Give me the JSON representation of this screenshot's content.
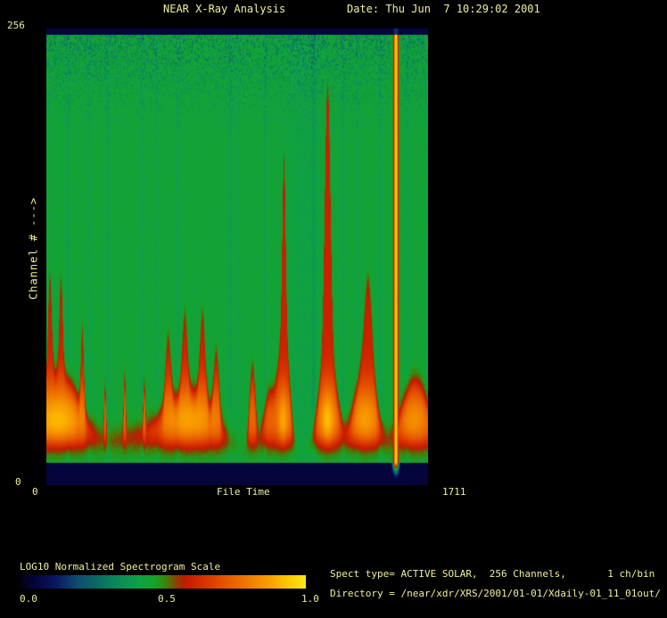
{
  "header": {
    "title": "NEAR X-Ray Analysis",
    "date": "Date: Thu Jun  7 10:29:02 2001"
  },
  "axes": {
    "y_max_label": "256",
    "y_min_label": "0",
    "y_title": "Channel # --->",
    "x_min_label": "0",
    "x_title": "File Time",
    "x_max_label": "1711"
  },
  "colorbar": {
    "label": "LOG10 Normalized Spectrogram Scale",
    "ticks": [
      "0.0",
      "0.5",
      "1.0"
    ]
  },
  "info": {
    "spect_line": "Spect type= ACTIVE SOLAR,  256 Channels,       1 ch/bin",
    "directory_line": "Directory = /near/xdr/XRS/2001/01-01/Xdaily-01_11_01out/"
  },
  "colors": {
    "background": "#000000",
    "text": "#efef9e",
    "navy_band": "#0b0b52",
    "plot_green": "#10a242",
    "flare_red": "#d02200",
    "flare_orange": "#ee7700",
    "saturation_yellow": "#ffe818"
  },
  "chart_data": {
    "type": "heatmap",
    "title": "NEAR X-Ray Analysis",
    "subtitle": "Date: Thu Jun  7 10:29:02 2001",
    "xlabel": "File Time",
    "ylabel": "Channel # --->",
    "x_range": [
      0,
      1711
    ],
    "y_range": [
      0,
      256
    ],
    "scale_label": "LOG10 Normalized Spectrogram Scale",
    "scale_ticks": [
      0.0,
      0.5,
      1.0
    ],
    "spect_type": "ACTIVE SOLAR",
    "channels": 256,
    "channels_per_bin": 1,
    "legend_position": "bottom-left colorbar",
    "grid": false,
    "colormap_stops": [
      [
        0.0,
        "#020212"
      ],
      [
        0.06,
        "#050540"
      ],
      [
        0.13,
        "#0a1a62"
      ],
      [
        0.2,
        "#0e4d71"
      ],
      [
        0.27,
        "#0c6a62"
      ],
      [
        0.34,
        "#0c8a5a"
      ],
      [
        0.42,
        "#10a244"
      ],
      [
        0.47,
        "#16a32a"
      ],
      [
        0.51,
        "#3f830a"
      ],
      [
        0.55,
        "#8f3d02"
      ],
      [
        0.58,
        "#c41a00"
      ],
      [
        0.65,
        "#d93500"
      ],
      [
        0.72,
        "#e55700"
      ],
      [
        0.8,
        "#f07c00"
      ],
      [
        0.88,
        "#faa300"
      ],
      [
        0.94,
        "#ffc900"
      ],
      [
        1.0,
        "#ffe818"
      ]
    ],
    "model": {
      "comment": "procedural decomposition of the spectrogram: normalized LOG10 intensity v(t=file-time 0..1711, c=channel 0..256); flare events as gaussian bumps on the low-channel envelope",
      "base_envelope": 14,
      "bg_value": 0.445,
      "band_value": 0.6,
      "band_floor": 22,
      "core_center": 34,
      "core_sigma": 16,
      "core_base": 0.16,
      "envelope_events": [
        {
          "t": 55,
          "s": 90,
          "a": 50
        },
        {
          "t": 14,
          "s": 8,
          "a": 58
        },
        {
          "t": 64,
          "s": 7,
          "a": 52
        },
        {
          "t": 160,
          "s": 6,
          "a": 46
        },
        {
          "t": 262,
          "s": 4,
          "a": 28
        },
        {
          "t": 350,
          "s": 4,
          "a": 34
        },
        {
          "t": 438,
          "s": 4,
          "a": 26
        },
        {
          "t": 370,
          "s": 130,
          "a": 13
        },
        {
          "t": 650,
          "s": 115,
          "a": 38
        },
        {
          "t": 545,
          "s": 11,
          "a": 40
        },
        {
          "t": 620,
          "s": 11,
          "a": 44
        },
        {
          "t": 700,
          "s": 11,
          "a": 48
        },
        {
          "t": 762,
          "s": 11,
          "a": 38
        },
        {
          "t": 924,
          "s": 13,
          "a": 50
        },
        {
          "t": 1000,
          "s": 28,
          "a": 36
        },
        {
          "t": 1066,
          "s": 24,
          "a": 76
        },
        {
          "t": 1066,
          "s": 7,
          "a": 92
        },
        {
          "t": 1262,
          "s": 40,
          "a": 62
        },
        {
          "t": 1262,
          "s": 12,
          "a": 150
        },
        {
          "t": 1430,
          "s": 48,
          "a": 55
        },
        {
          "t": 1445,
          "s": 16,
          "a": 50
        },
        {
          "t": 1655,
          "s": 65,
          "a": 46
        }
      ],
      "hot_events": [
        {
          "t": 50,
          "s": 75,
          "a": 0.17
        },
        {
          "t": 640,
          "s": 85,
          "a": 0.13
        },
        {
          "t": 1062,
          "s": 16,
          "a": 0.14
        },
        {
          "t": 1262,
          "s": 22,
          "a": 0.18
        },
        {
          "t": 1430,
          "s": 38,
          "a": 0.12
        },
        {
          "t": 1650,
          "s": 45,
          "a": 0.09
        }
      ],
      "streaks": [
        {
          "t": 95,
          "s": 8,
          "a": 0.035
        },
        {
          "t": 190,
          "s": 7,
          "a": 0.03
        },
        {
          "t": 275,
          "s": 8,
          "a": 0.035
        },
        {
          "t": 430,
          "s": 9,
          "a": 0.03
        },
        {
          "t": 495,
          "s": 7,
          "a": 0.028
        },
        {
          "t": 592,
          "s": 8,
          "a": 0.03
        },
        {
          "t": 824,
          "s": 8,
          "a": 0.04
        },
        {
          "t": 860,
          "s": 6,
          "a": 0.03
        },
        {
          "t": 980,
          "s": 5,
          "a": 0.045
        },
        {
          "t": 1150,
          "s": 55,
          "a": 0.025
        },
        {
          "t": 1200,
          "s": 8,
          "a": 0.04
        },
        {
          "t": 1330,
          "s": 8,
          "a": 0.035
        },
        {
          "t": 1395,
          "s": 7,
          "a": 0.03
        },
        {
          "t": 1500,
          "s": 8,
          "a": 0.035
        },
        {
          "t": 1620,
          "s": 6,
          "a": 0.03
        }
      ],
      "stripe": {
        "t": 1569,
        "core_sigma": 10,
        "core_value": 0.97,
        "halo_sigma": 22,
        "halo_value": 0.72,
        "top_band_leak": 0.18
      },
      "noise": {
        "fine": 0.022,
        "speckle_start": 190,
        "speckle_strength": 0.15
      },
      "navy": {
        "top_channel": 252.5,
        "bottom_channel": 12.5,
        "value": 0.055
      }
    }
  }
}
